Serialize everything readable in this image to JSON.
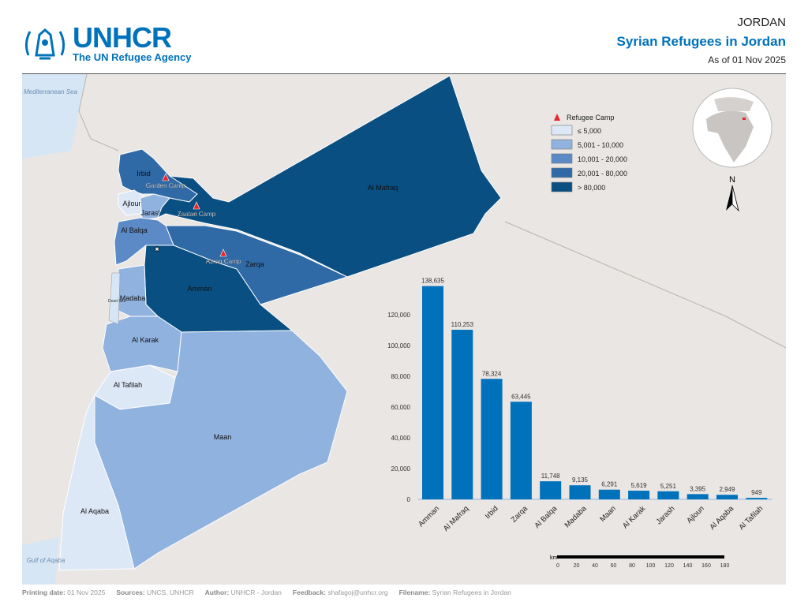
{
  "header": {
    "brand": "UNHCR",
    "brand_sub": "The UN Refugee Agency",
    "country": "JORDAN",
    "title": "Syrian Refugees in Jordan",
    "as_of": "As of 01 Nov 2025"
  },
  "colors": {
    "brand": "#0072bc",
    "bar": "#0072bc",
    "class1": "#dde8f7",
    "class2": "#90b2df",
    "class3": "#5b8ac6",
    "class4": "#2f6aa6",
    "class5": "#0a4f82",
    "camp": "#e8262a"
  },
  "map": {
    "water_labels": [
      "Mediterranean Sea",
      "Dead Sea",
      "Gulf of Aqaba"
    ],
    "governorates": [
      {
        "name": "Irbid",
        "class": "class4"
      },
      {
        "name": "Ajloun",
        "class": "class1"
      },
      {
        "name": "Jarash",
        "class": "class2"
      },
      {
        "name": "Al Mafraq",
        "class": "class5"
      },
      {
        "name": "Zarqa",
        "class": "class4"
      },
      {
        "name": "Al Balqa",
        "class": "class3"
      },
      {
        "name": "Amman",
        "class": "class5"
      },
      {
        "name": "Madaba",
        "class": "class2"
      },
      {
        "name": "Al Karak",
        "class": "class2"
      },
      {
        "name": "Al Tafilah",
        "class": "class1"
      },
      {
        "name": "Maan",
        "class": "class2"
      },
      {
        "name": "Al Aqaba",
        "class": "class1"
      }
    ],
    "camps": [
      "Garden Camp",
      "Zaatari Camp",
      "Azraq Camp"
    ],
    "capital_icon": "star-icon",
    "north_label": "N",
    "scale": {
      "unit": "km",
      "ticks": [
        "0",
        "20",
        "40",
        "60",
        "80",
        "100",
        "120",
        "140",
        "160",
        "180"
      ]
    }
  },
  "legend": {
    "camp": "Refugee Camp",
    "classes": [
      "≤ 5,000",
      "5,001 - 10,000",
      "10,001 - 20,000",
      "20,001 - 80,000",
      "> 80,000"
    ]
  },
  "chart_data": {
    "type": "bar",
    "categories": [
      "Amman",
      "Al Mafraq",
      "Irbid",
      "Zarqa",
      "Al Balqa",
      "Madaba",
      "Maan",
      "Al Karak",
      "Jarash",
      "Ajloun",
      "Al Aqaba",
      "Al Tafilah"
    ],
    "values": [
      138635,
      110253,
      78324,
      63445,
      11748,
      9135,
      6291,
      5619,
      5251,
      3395,
      2949,
      949
    ],
    "labels": [
      "138,635",
      "110,253",
      "78,324",
      "63,445",
      "11,748",
      "9,135",
      "6,291",
      "5,619",
      "5,251",
      "3,395",
      "2,949",
      "949"
    ],
    "yticks": [
      "0",
      "20,000",
      "40,000",
      "60,000",
      "80,000",
      "100,000",
      "120,000"
    ],
    "ylim": [
      0,
      140000
    ],
    "grid": false
  },
  "footer": [
    {
      "k": "Printing date:",
      "v": "01 Nov 2025"
    },
    {
      "k": "Sources:",
      "v": "UNCS, UNHCR"
    },
    {
      "k": "Author:",
      "v": "UNHCR - Jordan"
    },
    {
      "k": "Feedback:",
      "v": "shafagoj@unhcr.org"
    },
    {
      "k": "Filename:",
      "v": "Syrian Refugees in Jordan"
    }
  ]
}
